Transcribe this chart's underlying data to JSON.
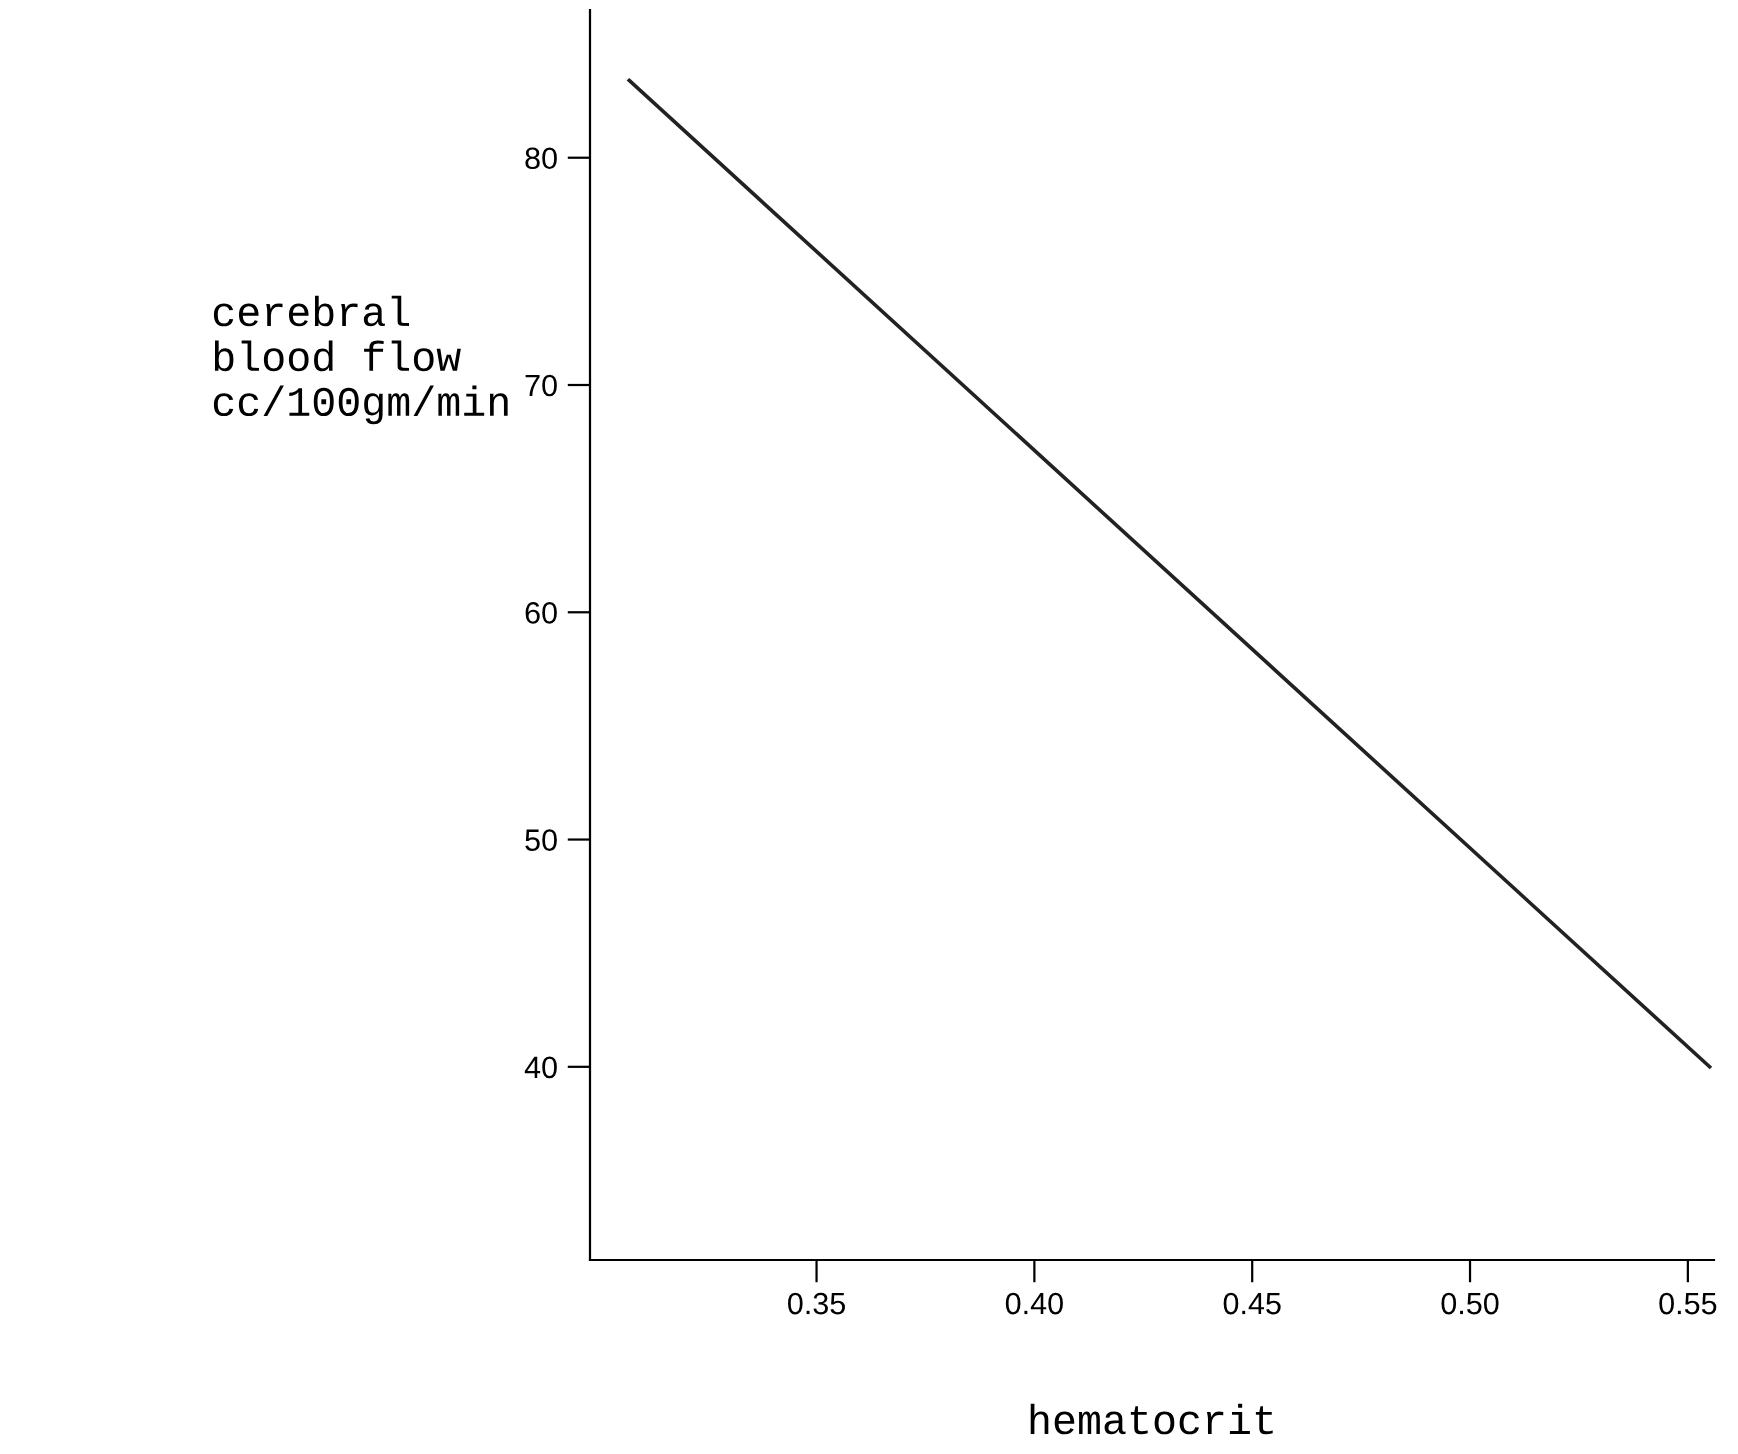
{
  "chart_data": {
    "type": "line",
    "xlabel": "hematocrit",
    "ylabel": "cerebral\nblood flow\ncc/100gm/min",
    "x": [
      0.307,
      0.555
    ],
    "series": [
      {
        "color": "#222222",
        "values": [
          83.4,
          40.0
        ]
      }
    ],
    "xlim": [
      0.298,
      0.556
    ],
    "ylim": [
      31.5,
      86.5
    ],
    "xticks": [
      {
        "value": 0.35,
        "label": "0.35"
      },
      {
        "value": 0.4,
        "label": "0.40"
      },
      {
        "value": 0.45,
        "label": "0.45"
      },
      {
        "value": 0.5,
        "label": "0.50"
      },
      {
        "value": 0.55,
        "label": "0.55"
      }
    ],
    "yticks": [
      40,
      50,
      60,
      70,
      80
    ],
    "grid": false,
    "legend": false,
    "marker": "none",
    "line_style": "solid"
  }
}
